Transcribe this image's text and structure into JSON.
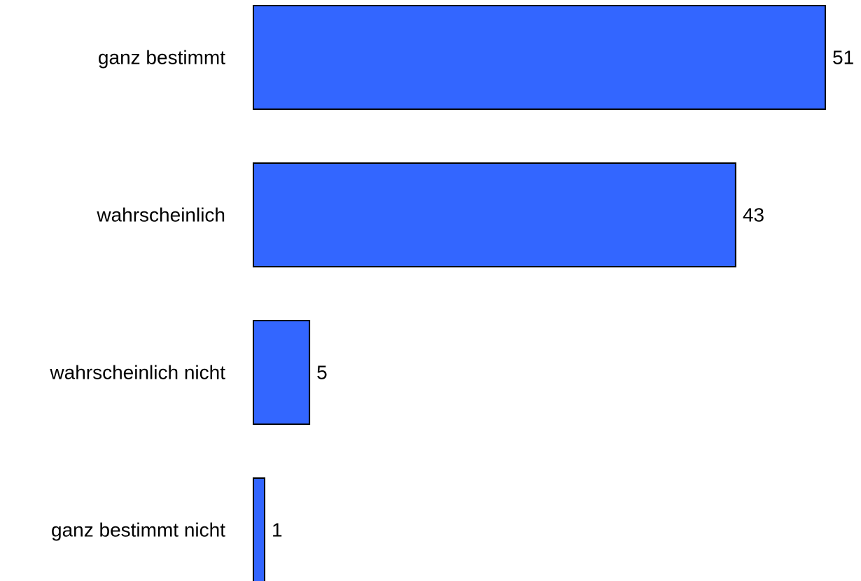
{
  "chart_data": {
    "type": "bar",
    "orientation": "horizontal",
    "categories": [
      "ganz bestimmt",
      "wahrscheinlich",
      "wahrscheinlich nicht",
      "ganz bestimmt nicht"
    ],
    "values": [
      51,
      43,
      5,
      1
    ],
    "value_labels": [
      "51",
      "43",
      "5",
      "1"
    ],
    "title": "",
    "xlabel": "",
    "ylabel": "",
    "xlim": [
      0,
      51
    ],
    "grid": false,
    "legend": "none",
    "bar_color": "#3366ff",
    "edge_color": "#000000"
  }
}
